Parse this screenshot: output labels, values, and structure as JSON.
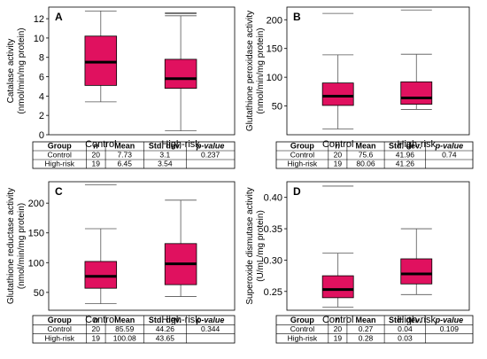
{
  "chart_data": [
    {
      "type": "box",
      "panel": "A",
      "ylabel": "Catalase activity\n(nmol/min/mg protein)",
      "ylim": [
        0,
        13.2
      ],
      "yticks": [
        0,
        2,
        4,
        6,
        8,
        10,
        12
      ],
      "categories": [
        "Control",
        "High-risk"
      ],
      "boxes": [
        {
          "min": 3.4,
          "q1": 5.1,
          "median": 7.5,
          "q3": 10.2,
          "max": 12.8,
          "outliers": []
        },
        {
          "min": 0.4,
          "q1": 4.8,
          "median": 5.8,
          "q3": 7.8,
          "max": 12.3,
          "outliers": [
            12.5,
            12.6
          ]
        }
      ],
      "table": {
        "headers": [
          "Group",
          "n",
          "Mean",
          "Std. dev.",
          "p-value"
        ],
        "rows": [
          [
            "Control",
            "20",
            "7.73",
            "3.1",
            "0.237"
          ],
          [
            "High-risk",
            "19",
            "6.45",
            "3.54",
            ""
          ]
        ]
      }
    },
    {
      "type": "box",
      "panel": "B",
      "ylabel": "Glutathione peroxidase activity\n(nmol/min/mg protein)",
      "ylim": [
        0,
        222
      ],
      "yticks": [
        50,
        100,
        150,
        200
      ],
      "categories": [
        "Control",
        "High-risk"
      ],
      "boxes": [
        {
          "min": 10,
          "q1": 51,
          "median": 67,
          "q3": 90,
          "max": 139,
          "outliers": [
            211
          ]
        },
        {
          "min": 44,
          "q1": 53,
          "median": 64,
          "q3": 92,
          "max": 140,
          "outliers": [
            217
          ]
        }
      ],
      "table": {
        "headers": [
          "Group",
          "n",
          "Mean",
          "Std. dev.",
          "p-value"
        ],
        "rows": [
          [
            "Control",
            "20",
            "75.6",
            "41.96",
            "0.74"
          ],
          [
            "High-risk",
            "19",
            "80.06",
            "41.26",
            ""
          ]
        ]
      }
    },
    {
      "type": "box",
      "panel": "C",
      "ylabel": "Glutathione reductase activity\n(nmol/min/mg protein)",
      "ylim": [
        20,
        236
      ],
      "yticks": [
        50,
        100,
        150,
        200
      ],
      "categories": [
        "Control",
        "High-risk"
      ],
      "boxes": [
        {
          "min": 31,
          "q1": 57,
          "median": 77,
          "q3": 102,
          "max": 157,
          "outliers": [
            231
          ]
        },
        {
          "min": 43,
          "q1": 63,
          "median": 98,
          "q3": 132,
          "max": 205,
          "outliers": []
        }
      ],
      "table": {
        "headers": [
          "Group",
          "n",
          "Mean",
          "Std. dev.",
          "p-value"
        ],
        "rows": [
          [
            "Control",
            "20",
            "85.59",
            "44.26",
            "0.344"
          ],
          [
            "High-risk",
            "19",
            "100.08",
            "43.65",
            ""
          ]
        ]
      }
    },
    {
      "type": "box",
      "panel": "D",
      "ylabel": "Superoxide dismutase activity\n(U/mL/mg protein)",
      "ylim": [
        0.22,
        0.425
      ],
      "yticks": [
        0.25,
        0.3,
        0.35,
        0.4
      ],
      "categories": [
        "Control",
        "High-risk"
      ],
      "boxes": [
        {
          "min": 0.225,
          "q1": 0.24,
          "median": 0.253,
          "q3": 0.275,
          "max": 0.311,
          "outliers": [
            0.418
          ]
        },
        {
          "min": 0.245,
          "q1": 0.262,
          "median": 0.278,
          "q3": 0.302,
          "max": 0.35,
          "outliers": []
        }
      ],
      "table": {
        "headers": [
          "Group",
          "n",
          "Mean",
          "Std. dev.",
          "p-value"
        ],
        "rows": [
          [
            "Control",
            "20",
            "0.27",
            "0.04",
            "0.109"
          ],
          [
            "High-risk",
            "19",
            "0.28",
            "0.03",
            ""
          ]
        ]
      }
    }
  ],
  "colors": {
    "box_fill": "#e0115f",
    "whisker": "#555555"
  }
}
